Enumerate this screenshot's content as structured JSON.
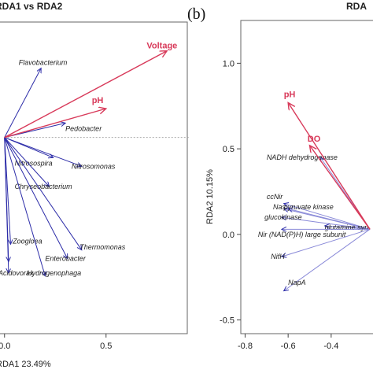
{
  "colors": {
    "species": "#2c2ca8",
    "species_light": "#8a8ad8",
    "environment": "#d83a5a",
    "frame": "#666666"
  },
  "chart_data": [
    {
      "type": "scatter",
      "panel_letter": "",
      "title": "RDA1 vs RDA2",
      "xlabel": "RDA1 23.49%",
      "ylabel": "",
      "xlim": [
        -0.03,
        0.9
      ],
      "ylim": [
        -0.68,
        0.4
      ],
      "x_ticks": [
        {
          "value": 0,
          "label": "0.0"
        },
        {
          "value": 0.5,
          "label": "0.5"
        }
      ],
      "y_ticks": [],
      "dashed_reference_lines": true,
      "origin": [
        0,
        0
      ],
      "species": [
        {
          "name": "Flavobacterium",
          "x": 0.18,
          "y": 0.24,
          "label_x": 0.07,
          "label_y": 0.26
        },
        {
          "name": "Pedobacter",
          "x": 0.3,
          "y": 0.05,
          "label_x": 0.3,
          "label_y": 0.03
        },
        {
          "name": "Nitrosospira",
          "x": 0.24,
          "y": -0.07,
          "label_x": 0.05,
          "label_y": -0.09
        },
        {
          "name": "Nitrosomonas",
          "x": 0.38,
          "y": -0.1,
          "label_x": 0.33,
          "label_y": -0.1
        },
        {
          "name": "Chryseobacterium",
          "x": 0.22,
          "y": -0.17,
          "label_x": 0.05,
          "label_y": -0.17
        },
        {
          "name": "Zoogloea",
          "x": 0.03,
          "y": -0.37,
          "label_x": 0.04,
          "label_y": -0.36
        },
        {
          "name": "Thermomonas",
          "x": 0.38,
          "y": -0.39,
          "label_x": 0.37,
          "label_y": -0.38
        },
        {
          "name": "Enterobacter",
          "x": 0.31,
          "y": -0.42,
          "label_x": 0.2,
          "label_y": -0.42
        },
        {
          "name": "Hydrogenophaga",
          "x": 0.2,
          "y": -0.48,
          "label_x": 0.11,
          "label_y": -0.47
        },
        {
          "name": "Acidovorax",
          "x": 0.02,
          "y": -0.47,
          "label_x": -0.03,
          "label_y": -0.47
        },
        {
          "name": "",
          "x": 0.02,
          "y": -0.43
        }
      ],
      "environment": [
        {
          "name": "Voltage",
          "x": 0.8,
          "y": 0.3,
          "label_x": 0.7,
          "label_y": 0.32
        },
        {
          "name": "pH",
          "x": 0.5,
          "y": 0.1,
          "label_x": 0.43,
          "label_y": 0.13
        }
      ]
    },
    {
      "type": "scatter",
      "panel_letter": "(b)",
      "title": "RDA",
      "xlabel": "",
      "ylabel": "RDA2 10.15%",
      "xlim": [
        -0.82,
        -0.18
      ],
      "ylim": [
        -0.58,
        1.25
      ],
      "x_ticks": [
        {
          "value": -0.8,
          "label": "-0.8"
        },
        {
          "value": -0.6,
          "label": "-0.6"
        },
        {
          "value": -0.4,
          "label": "-0.4"
        }
      ],
      "y_ticks": [
        {
          "value": 1.0,
          "label": "1.0"
        },
        {
          "value": 0.5,
          "label": "0.5"
        },
        {
          "value": 0.0,
          "label": "0.0"
        },
        {
          "value": -0.5,
          "label": "-0.5"
        }
      ],
      "dashed_reference_lines": false,
      "origin": [
        -0.22,
        0.03
      ],
      "species": [
        {
          "name": "NADH dehydrogenase",
          "x": -0.45,
          "y": 0.45,
          "label_x": -0.7,
          "label_y": 0.45
        },
        {
          "name": "ccNir",
          "x": -0.62,
          "y": 0.18,
          "label_x": -0.7,
          "label_y": 0.22
        },
        {
          "name": "Nas",
          "x": -0.62,
          "y": 0.15,
          "label_x": -0.67,
          "label_y": 0.16
        },
        {
          "name": "pyruvate kinase",
          "x": -0.6,
          "y": 0.15,
          "label_x": -0.62,
          "label_y": 0.16
        },
        {
          "name": "glucokinase",
          "x": -0.63,
          "y": 0.1,
          "label_x": -0.71,
          "label_y": 0.1
        },
        {
          "name": "glutamine syn",
          "x": -0.43,
          "y": 0.05,
          "label_x": -0.43,
          "label_y": 0.04
        },
        {
          "name": "Nir (NAD(P)H) large subunit",
          "x": -0.63,
          "y": 0.03,
          "label_x": -0.74,
          "label_y": 0.0
        },
        {
          "name": "NifH",
          "x": -0.63,
          "y": -0.13,
          "label_x": -0.68,
          "label_y": -0.13
        },
        {
          "name": "NapA",
          "x": -0.62,
          "y": -0.33,
          "label_x": -0.6,
          "label_y": -0.28
        }
      ],
      "environment": [
        {
          "name": "pH",
          "x": -0.6,
          "y": 0.77,
          "label_x": -0.62,
          "label_y": 0.82
        },
        {
          "name": "DO",
          "x": -0.5,
          "y": 0.52,
          "label_x": -0.51,
          "label_y": 0.56
        }
      ]
    }
  ]
}
